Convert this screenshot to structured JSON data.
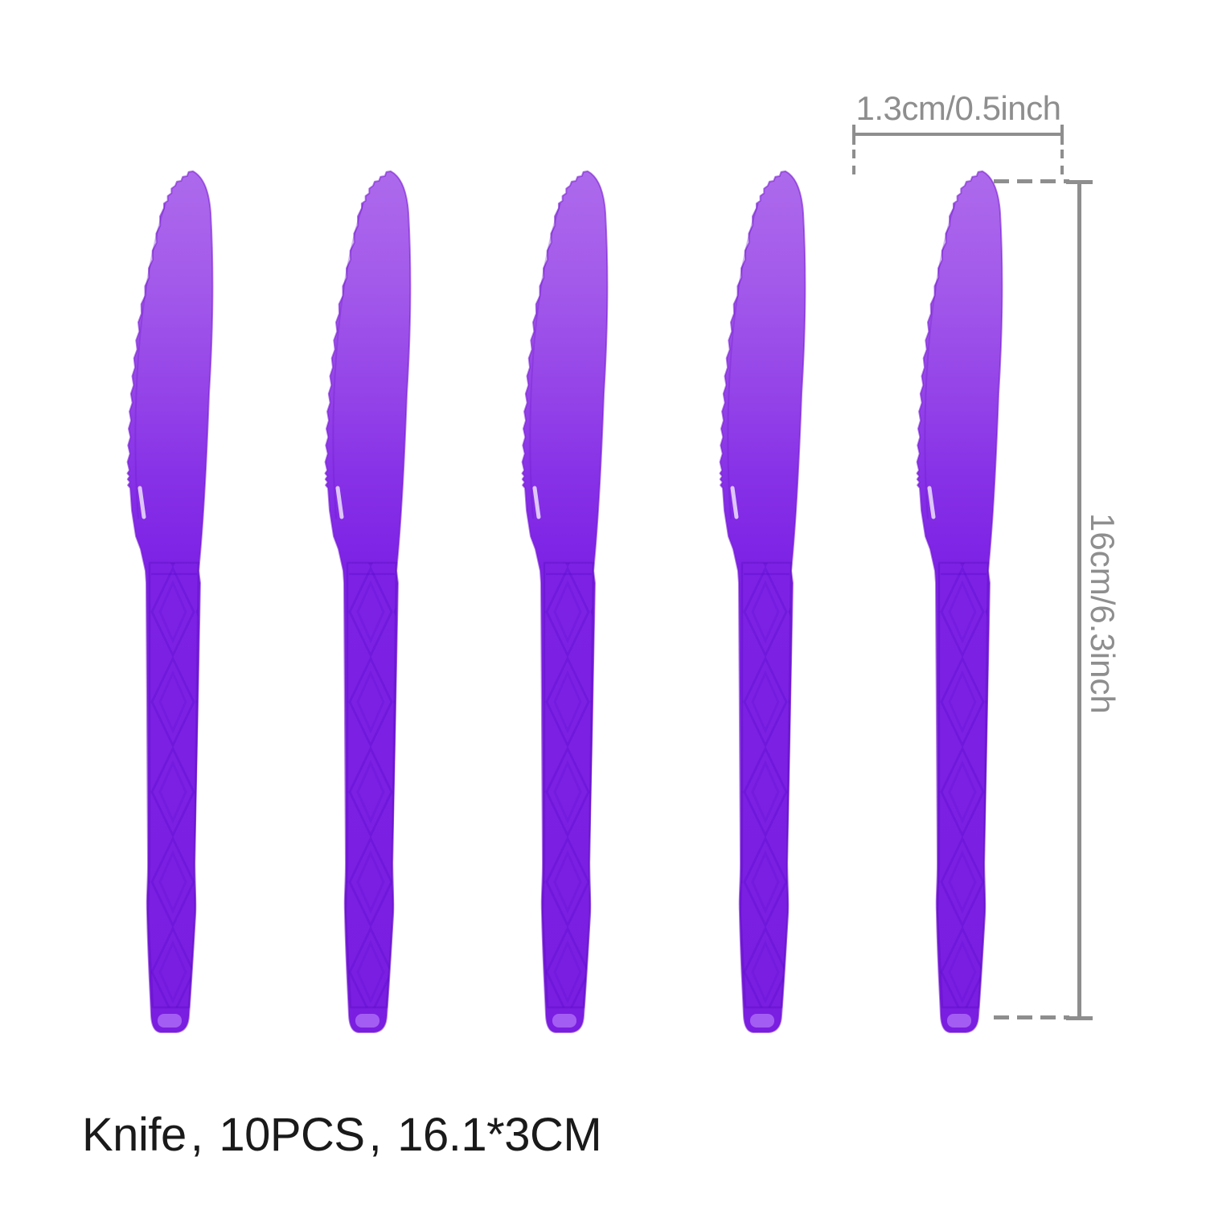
{
  "product": {
    "caption": "Knife、10PCS、16.1*3CM",
    "item": "Knife",
    "pieces": "10PCS",
    "size": "16.1*3CM",
    "knives_shown": 5
  },
  "dimensions": {
    "width_label": "1.3cm/0.5inch",
    "length_label": "16cm/6.3inch"
  },
  "colors": {
    "knife_purple": "#7b1fe2",
    "knife_light_purple": "#ad6aec",
    "annotation_gray": "#8e8e8e",
    "caption_black": "#1a1a1a",
    "background": "#ffffff"
  }
}
